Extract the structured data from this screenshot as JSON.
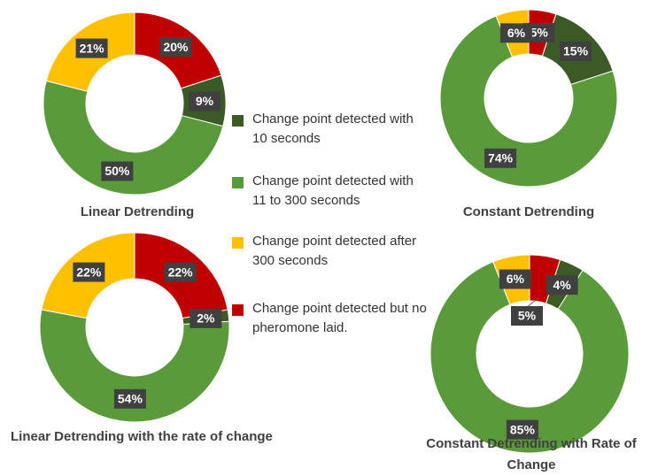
{
  "legend": {
    "series": [
      {
        "name": "Change point detected with 10 seconds",
        "color": "#3b5a26"
      },
      {
        "name": "Change point detected with 11 to 300 seconds",
        "color": "#5a9a3b"
      },
      {
        "name": "Change point detected after 300 seconds",
        "color": "#ffc000"
      },
      {
        "name": "Change point detected but no pheromone laid.",
        "color": "#c00000"
      }
    ]
  },
  "chart_data": [
    {
      "type": "donut",
      "title": "Linear Detrending",
      "values": [
        9,
        50,
        21,
        20
      ],
      "value_labels": [
        "9%",
        "50%",
        "21%",
        "20%"
      ]
    },
    {
      "type": "donut",
      "title": "Constant Detrending",
      "values": [
        15,
        74,
        6,
        5
      ],
      "value_labels": [
        "15%",
        "74%",
        "6%",
        "5%"
      ]
    },
    {
      "type": "donut",
      "title": "Linear Detrending with  the rate of change",
      "values": [
        2,
        54,
        22,
        22
      ],
      "value_labels": [
        "2%",
        "54%",
        "22%",
        "22%"
      ]
    },
    {
      "type": "donut",
      "title": "Constant Detrending with Rate of Change",
      "values": [
        4,
        85,
        6,
        5
      ],
      "value_labels": [
        "4%",
        "85%",
        "6%",
        "5%"
      ]
    }
  ]
}
